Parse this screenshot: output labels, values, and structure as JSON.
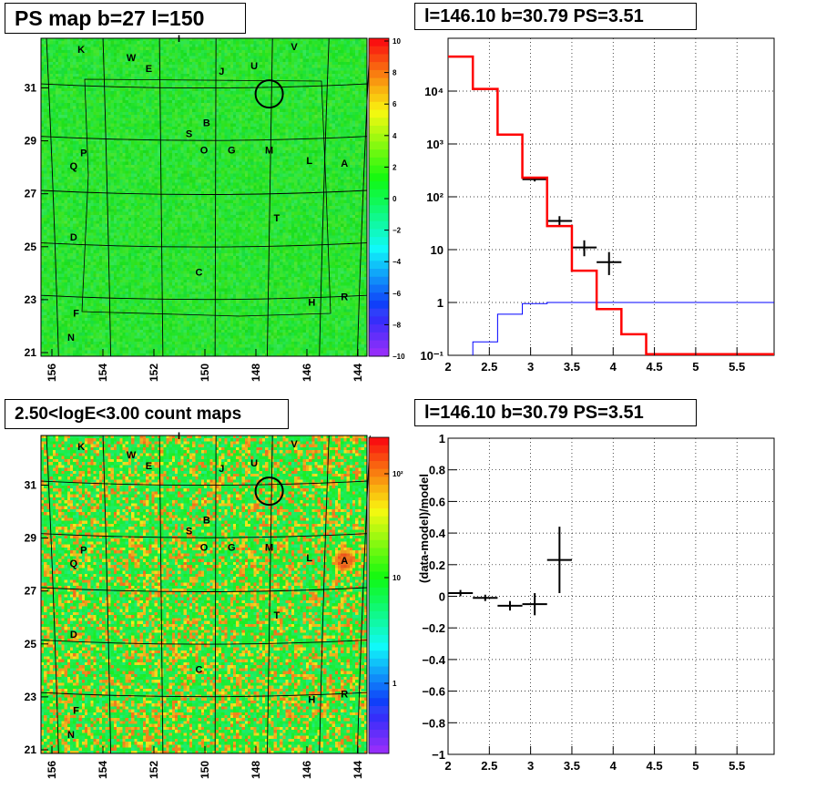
{
  "panels": {
    "ps_map_title": "PS map b=27 l=150",
    "spectrum_title": "l=146.10 b=30.79 PS=3.51",
    "count_map_title": "2.50<logE<3.00 count maps",
    "residual_title": "l=146.10 b=30.79 PS=3.51"
  },
  "colors": {
    "map_green": "#3fe650",
    "model_red": "#ff0000",
    "background_blue": "#0000ff",
    "data_black": "#000000"
  },
  "chart_data": [
    {
      "type": "heatmap",
      "title": "PS map b=27 l=150",
      "x_ticks": [
        "156",
        "154",
        "152",
        "150",
        "148",
        "146",
        "144"
      ],
      "y_ticks": [
        "21",
        "23",
        "25",
        "27",
        "29",
        "31"
      ],
      "xlim": [
        156.5,
        143.5
      ],
      "ylim": [
        20.9,
        32.6
      ],
      "colorbar_ticks": [
        "10",
        "8",
        "6",
        "4",
        "2",
        "0",
        "−2",
        "−4",
        "−6",
        "−8",
        "−10"
      ],
      "colorbar_range": [
        -10,
        10
      ],
      "labels": [
        {
          "text": "K",
          "l": 154.9,
          "b": 32.2
        },
        {
          "text": "I",
          "l": 151.0,
          "b": 32.6
        },
        {
          "text": "W",
          "l": 152.9,
          "b": 31.9
        },
        {
          "text": "E",
          "l": 152.2,
          "b": 31.5
        },
        {
          "text": "J",
          "l": 149.3,
          "b": 31.4
        },
        {
          "text": "U",
          "l": 148.0,
          "b": 31.6
        },
        {
          "text": "V",
          "l": 146.4,
          "b": 32.3
        },
        {
          "text": "B",
          "l": 149.9,
          "b": 29.5
        },
        {
          "text": "S",
          "l": 150.6,
          "b": 29.1
        },
        {
          "text": "O",
          "l": 150.0,
          "b": 28.5
        },
        {
          "text": "G",
          "l": 148.9,
          "b": 28.5
        },
        {
          "text": "M",
          "l": 147.4,
          "b": 28.5
        },
        {
          "text": "L",
          "l": 145.8,
          "b": 28.1
        },
        {
          "text": "A",
          "l": 144.4,
          "b": 28.0
        },
        {
          "text": "P",
          "l": 154.8,
          "b": 28.4
        },
        {
          "text": "Q",
          "l": 155.2,
          "b": 27.9
        },
        {
          "text": "T",
          "l": 147.1,
          "b": 26.0
        },
        {
          "text": "D",
          "l": 155.2,
          "b": 25.3
        },
        {
          "text": "C",
          "l": 150.2,
          "b": 24.0
        },
        {
          "text": "H",
          "l": 145.7,
          "b": 22.9
        },
        {
          "text": "R",
          "l": 144.4,
          "b": 23.1
        },
        {
          "text": "F",
          "l": 155.1,
          "b": 22.5
        },
        {
          "text": "N",
          "l": 155.3,
          "b": 21.6
        }
      ],
      "circle": {
        "l": 146.1,
        "b": 30.79
      }
    },
    {
      "type": "line",
      "title": "l=146.10 b=30.79 PS=3.51",
      "xlim": [
        2,
        5.95
      ],
      "ylim": [
        0.1,
        100000
      ],
      "log_y": true,
      "grid": true,
      "x_ticks": [
        "2",
        "2.5",
        "3",
        "3.5",
        "4",
        "4.5",
        "5",
        "5.5"
      ],
      "y_ticks": [
        "10⁻¹",
        "1",
        "10",
        "10²",
        "10³",
        "10⁴"
      ],
      "model_step": {
        "edges": [
          2.0,
          2.3,
          2.6,
          2.9,
          3.2,
          3.5,
          3.8,
          4.1,
          4.4,
          4.7,
          5.0,
          5.3,
          5.6,
          5.95
        ],
        "values": [
          45000,
          11000,
          1500,
          230,
          28,
          4,
          0.75,
          0.25,
          0.105,
          0.105,
          0.105,
          0.105,
          0.105
        ]
      },
      "background_step": {
        "edges": [
          2.3,
          2.6,
          2.9,
          3.2,
          3.5,
          5.95
        ],
        "values": [
          0.18,
          0.6,
          0.95,
          1.0,
          1.0
        ]
      },
      "data_points": [
        {
          "x": 2.15,
          "y": 45000,
          "xerr": 0.15,
          "ylo": 44000,
          "yhi": 46000
        },
        {
          "x": 2.45,
          "y": 11000,
          "xerr": 0.15,
          "ylo": 10800,
          "yhi": 11200
        },
        {
          "x": 2.75,
          "y": 1500,
          "xerr": 0.15,
          "ylo": 1450,
          "yhi": 1550
        },
        {
          "x": 3.05,
          "y": 215,
          "xerr": 0.15,
          "ylo": 195,
          "yhi": 235
        },
        {
          "x": 3.35,
          "y": 35,
          "xerr": 0.15,
          "ylo": 28,
          "yhi": 43
        },
        {
          "x": 3.65,
          "y": 11,
          "xerr": 0.15,
          "ylo": 7.5,
          "yhi": 15
        },
        {
          "x": 3.95,
          "y": 5.8,
          "xerr": 0.15,
          "ylo": 3.3,
          "yhi": 9
        }
      ]
    },
    {
      "type": "heatmap",
      "title": "2.50<logE<3.00 count maps",
      "x_ticks": [
        "156",
        "154",
        "152",
        "150",
        "148",
        "146",
        "144"
      ],
      "y_ticks": [
        "21",
        "23",
        "25",
        "27",
        "29",
        "31"
      ],
      "colorbar_ticks": [
        "10²",
        "10",
        "1"
      ],
      "colorbar_log": true,
      "hotspot": {
        "l": 144.4,
        "b": 28.0,
        "label": "A"
      },
      "circle": {
        "l": 146.1,
        "b": 30.79
      }
    },
    {
      "type": "scatter",
      "title": "l=146.10 b=30.79 PS=3.51",
      "ylabel": "(data-model)/model",
      "xlim": [
        2,
        5.95
      ],
      "ylim": [
        -1,
        1
      ],
      "grid": true,
      "x_ticks": [
        "2",
        "2.5",
        "3",
        "3.5",
        "4",
        "4.5",
        "5",
        "5.5"
      ],
      "y_ticks": [
        "−1",
        "−0.8",
        "−0.6",
        "−0.4",
        "−0.2",
        "0",
        "0.2",
        "0.4",
        "0.6",
        "0.8",
        "1"
      ],
      "data_points": [
        {
          "x": 2.15,
          "y": 0.02,
          "xerr": 0.15,
          "yerr": 0.02
        },
        {
          "x": 2.45,
          "y": -0.01,
          "xerr": 0.15,
          "yerr": 0.02
        },
        {
          "x": 2.75,
          "y": -0.06,
          "xerr": 0.15,
          "yerr": 0.03
        },
        {
          "x": 3.05,
          "y": -0.05,
          "xerr": 0.15,
          "yerr": 0.07
        },
        {
          "x": 3.35,
          "y": 0.23,
          "xerr": 0.15,
          "yerr": 0.21
        }
      ]
    }
  ]
}
